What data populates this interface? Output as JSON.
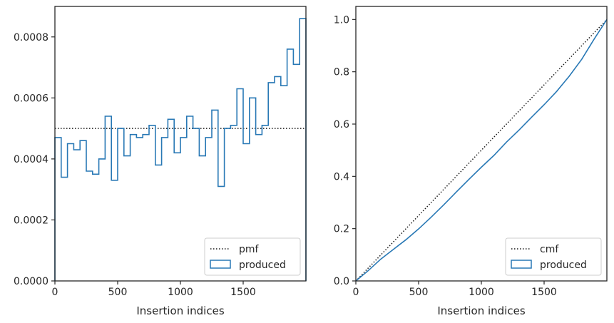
{
  "colors": {
    "step": "#2878b5",
    "reference": "#1a1a1a",
    "axes": "#262626",
    "legend_border": "#cccccc"
  },
  "chart_data": [
    {
      "type": "histogram",
      "xlabel": "Insertion indices",
      "ylabel": "",
      "xlim": [
        0,
        2000
      ],
      "ylim": [
        0,
        0.0009
      ],
      "x_ticks": [
        0,
        500,
        1000,
        1500
      ],
      "y_ticks": [
        0.0,
        0.0002,
        0.0004,
        0.0006,
        0.0008
      ],
      "y_tick_labels": [
        "0.0000",
        "0.0002",
        "0.0004",
        "0.0006",
        "0.0008"
      ],
      "reference_line": {
        "name": "pmf",
        "style": "dotted",
        "y": 0.0005
      },
      "series": [
        {
          "name": "produced",
          "style": "step",
          "bin_width": 50,
          "bin_start": 0,
          "values": [
            0.00047,
            0.00034,
            0.00045,
            0.00043,
            0.00046,
            0.00036,
            0.00035,
            0.0004,
            0.00054,
            0.00033,
            0.0005,
            0.00041,
            0.00048,
            0.00047,
            0.00048,
            0.00051,
            0.00038,
            0.00047,
            0.00053,
            0.00042,
            0.00047,
            0.00054,
            0.0005,
            0.00041,
            0.00047,
            0.00056,
            0.00031,
            0.0005,
            0.00051,
            0.00063,
            0.00045,
            0.0006,
            0.00048,
            0.00051,
            0.00065,
            0.00067,
            0.00064,
            0.00076,
            0.00071,
            0.00086
          ]
        }
      ],
      "legend": {
        "placement": "lower-right",
        "entries": [
          "pmf",
          "produced"
        ]
      },
      "grid": false
    },
    {
      "type": "line",
      "xlabel": "Insertion indices",
      "ylabel": "",
      "xlim": [
        0,
        2000
      ],
      "ylim": [
        0,
        1.05
      ],
      "x_ticks": [
        0,
        500,
        1000,
        1500
      ],
      "y_ticks": [
        0.0,
        0.2,
        0.4,
        0.6,
        0.8,
        1.0
      ],
      "y_tick_labels": [
        "0.0",
        "0.2",
        "0.4",
        "0.6",
        "0.8",
        "1.0"
      ],
      "reference_line": {
        "name": "cmf",
        "style": "dotted",
        "from": [
          0,
          0
        ],
        "to": [
          2000,
          1.0
        ]
      },
      "series": [
        {
          "name": "produced",
          "style": "step",
          "x": [
            0,
            100,
            200,
            300,
            400,
            500,
            600,
            700,
            800,
            900,
            1000,
            1100,
            1200,
            1300,
            1400,
            1500,
            1600,
            1700,
            1800,
            1900,
            2000
          ],
          "y": [
            0.0,
            0.04,
            0.084,
            0.121,
            0.158,
            0.199,
            0.244,
            0.291,
            0.34,
            0.388,
            0.435,
            0.48,
            0.531,
            0.577,
            0.626,
            0.674,
            0.725,
            0.783,
            0.848,
            0.926,
            1.0
          ]
        }
      ],
      "legend": {
        "placement": "lower-right",
        "entries": [
          "cmf",
          "produced"
        ]
      },
      "grid": false
    }
  ]
}
